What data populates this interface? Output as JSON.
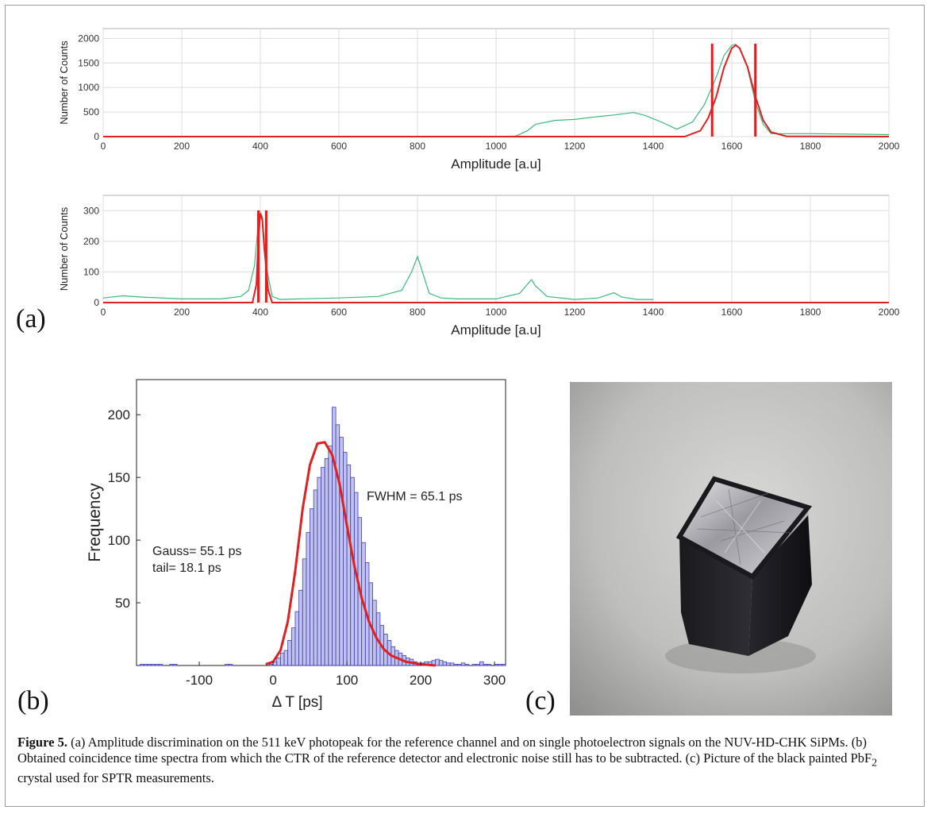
{
  "panel_labels": {
    "a": "(a)",
    "b": "(b)",
    "c": "(c)"
  },
  "caption": {
    "label": "Figure 5.",
    "text_1": " (a) Amplitude discrimination on the 511 keV photopeak for the reference channel and on single photoelectron signals on the NUV-HD-CHK SiPMs. (b) Obtained coincidence time spectra from which the CTR of the reference detector and electronic noise still has to be subtracted. (c) Picture of the black painted PbF",
    "sub": "2",
    "text_2": " crystal used for SPTR measurements."
  },
  "colors": {
    "data": "#3db87c",
    "fit": "#e02020",
    "hist": "#4040b8",
    "grid": "#dcdcdc"
  },
  "chart_data": [
    {
      "type": "line",
      "panel": "a-top",
      "xlabel": "Amplitude [a.u]",
      "ylabel": "Number of Counts",
      "xlim": [
        0,
        2000
      ],
      "ylim": [
        0,
        2200
      ],
      "xticks": [
        0,
        200,
        400,
        600,
        800,
        1000,
        1200,
        1400,
        1600,
        1800,
        2000
      ],
      "yticks": [
        0,
        500,
        1000,
        1500,
        2000
      ],
      "grid": true,
      "series": [
        {
          "role": "data",
          "x": [
            0,
            1000,
            1050,
            1080,
            1100,
            1150,
            1200,
            1250,
            1300,
            1350,
            1380,
            1420,
            1460,
            1500,
            1530,
            1560,
            1580,
            1600,
            1610,
            1620,
            1640,
            1660,
            1680,
            1700,
            1750,
            1800,
            1900,
            2000
          ],
          "y": [
            0,
            0,
            10,
            120,
            250,
            330,
            350,
            400,
            440,
            490,
            430,
            300,
            150,
            300,
            650,
            1200,
            1650,
            1860,
            1880,
            1800,
            1400,
            700,
            250,
            60,
            60,
            60,
            50,
            40
          ]
        },
        {
          "role": "fit",
          "x": [
            0,
            1480,
            1520,
            1540,
            1560,
            1580,
            1600,
            1610,
            1620,
            1640,
            1660,
            1680,
            1700,
            1740,
            2000
          ],
          "y": [
            0,
            0,
            120,
            380,
            800,
            1400,
            1800,
            1860,
            1800,
            1420,
            820,
            330,
            90,
            5,
            0
          ]
        }
      ],
      "cut_lines": [
        1550,
        1660
      ]
    },
    {
      "type": "line",
      "panel": "a-bottom",
      "xlabel": "Amplitude [a.u]",
      "ylabel": "Number of Counts",
      "xlim": [
        0,
        2000
      ],
      "ylim": [
        0,
        350
      ],
      "xticks": [
        0,
        200,
        400,
        600,
        800,
        1000,
        1200,
        1400,
        1600,
        1800,
        2000
      ],
      "yticks": [
        0,
        100,
        200,
        300
      ],
      "grid": true,
      "series": [
        {
          "role": "data",
          "x": [
            0,
            50,
            100,
            200,
            300,
            350,
            370,
            385,
            395,
            400,
            405,
            415,
            430,
            450,
            500,
            600,
            700,
            760,
            785,
            800,
            810,
            830,
            860,
            900,
            1000,
            1060,
            1080,
            1090,
            1100,
            1130,
            1200,
            1260,
            1290,
            1300,
            1320,
            1360,
            1400
          ],
          "y": [
            15,
            22,
            18,
            12,
            12,
            20,
            40,
            120,
            260,
            295,
            280,
            120,
            20,
            10,
            12,
            15,
            20,
            40,
            100,
            150,
            110,
            30,
            15,
            12,
            12,
            30,
            60,
            75,
            55,
            20,
            10,
            15,
            28,
            32,
            18,
            10,
            10
          ]
        },
        {
          "role": "fit",
          "x": [
            0,
            380,
            390,
            395,
            400,
            405,
            410,
            420,
            430,
            2000
          ],
          "y": [
            0,
            0,
            60,
            210,
            290,
            270,
            180,
            40,
            0,
            0
          ]
        }
      ],
      "cut_lines": [
        395,
        415
      ]
    },
    {
      "type": "bar",
      "panel": "b",
      "xlabel": "Δ T [ps]",
      "ylabel": "Frequency",
      "xlim": [
        -185,
        315
      ],
      "ylim": [
        0,
        228
      ],
      "xticks": [
        -100,
        0,
        100,
        200,
        300
      ],
      "yticks": [
        50,
        100,
        150,
        200
      ],
      "bin_width": 5,
      "bin_start": -180,
      "values": [
        1,
        1,
        1,
        1,
        1,
        1,
        0,
        0,
        1,
        1,
        0,
        0,
        0,
        0,
        0,
        0,
        0,
        0,
        0,
        0,
        0,
        0,
        0,
        1,
        1,
        0,
        0,
        0,
        0,
        0,
        0,
        0,
        0,
        0,
        0,
        1,
        3,
        6,
        10,
        12,
        20,
        30,
        43,
        60,
        85,
        106,
        125,
        140,
        150,
        158,
        165,
        175,
        206,
        192,
        182,
        170,
        160,
        150,
        138,
        118,
        98,
        82,
        66,
        52,
        42,
        32,
        25,
        20,
        15,
        12,
        10,
        8,
        6,
        5,
        3,
        2,
        2,
        3,
        3,
        4,
        5,
        4,
        3,
        2,
        2,
        1,
        1,
        2,
        1,
        0,
        1,
        1,
        3,
        1,
        1,
        0,
        1,
        1,
        1,
        0
      ],
      "fit_line": {
        "x": [
          -10,
          0,
          10,
          20,
          30,
          40,
          50,
          60,
          70,
          80,
          90,
          100,
          110,
          120,
          130,
          140,
          150,
          160,
          180,
          200,
          220
        ],
        "y": [
          1,
          3,
          12,
          35,
          75,
          125,
          160,
          177,
          178,
          168,
          145,
          112,
          80,
          54,
          35,
          22,
          13,
          8,
          3,
          1,
          0
        ]
      },
      "annotations": [
        "FWHM =  65.1 ps",
        "Gauss=  55.1 ps",
        "tail= 18.1 ps"
      ]
    }
  ]
}
